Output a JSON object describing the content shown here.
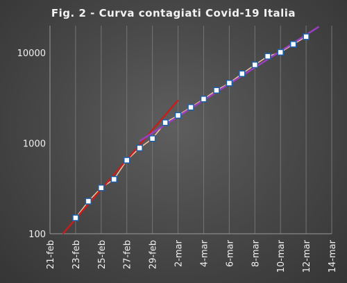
{
  "chart_data": {
    "type": "scatter",
    "title": "Fig. 2 - Curva contagiati Covid-19 Italia",
    "xlabel": "",
    "ylabel": "",
    "y_scale": "log",
    "ylim": [
      100,
      20000
    ],
    "xlim": [
      "2020-02-21",
      "2020-03-14"
    ],
    "y_ticks": [
      100,
      1000,
      10000
    ],
    "y_tick_labels": [
      "100",
      "1000",
      "10000"
    ],
    "x_tick_labels": [
      "21-feb",
      "23-feb",
      "25-feb",
      "27-feb",
      "29-feb",
      "2-mar",
      "4-mar",
      "6-mar",
      "8-mar",
      "10-mar",
      "12-mar",
      "14-mar"
    ],
    "x_tick_dates": [
      "2020-02-21",
      "2020-02-23",
      "2020-02-25",
      "2020-02-27",
      "2020-02-29",
      "2020-03-02",
      "2020-03-04",
      "2020-03-06",
      "2020-03-08",
      "2020-03-10",
      "2020-03-12",
      "2020-03-14"
    ],
    "grid": "vertical",
    "series": [
      {
        "type": "scatter",
        "color": "#ffffff",
        "edge_color": "#1f5fa8",
        "x": [
          "2020-02-23",
          "2020-02-24",
          "2020-02-25",
          "2020-02-26",
          "2020-02-27",
          "2020-02-28",
          "2020-02-29",
          "2020-03-01",
          "2020-03-02",
          "2020-03-03",
          "2020-03-04",
          "2020-03-05",
          "2020-03-06",
          "2020-03-07",
          "2020-03-08",
          "2020-03-09",
          "2020-03-10",
          "2020-03-11",
          "2020-03-12"
        ],
        "y": [
          150,
          229,
          322,
          400,
          650,
          888,
          1128,
          1694,
          2036,
          2502,
          3089,
          3858,
          4636,
          5883,
          7375,
          9172,
          10149,
          12462,
          15113
        ]
      },
      {
        "type": "line",
        "color": "#c0201e",
        "x": [
          "2020-02-22",
          "2020-03-02"
        ],
        "y": [
          100,
          3000
        ]
      },
      {
        "type": "line",
        "color": "#9b3fc0",
        "x": [
          "2020-02-28",
          "2020-03-13"
        ],
        "y": [
          1060,
          19500
        ]
      }
    ]
  }
}
